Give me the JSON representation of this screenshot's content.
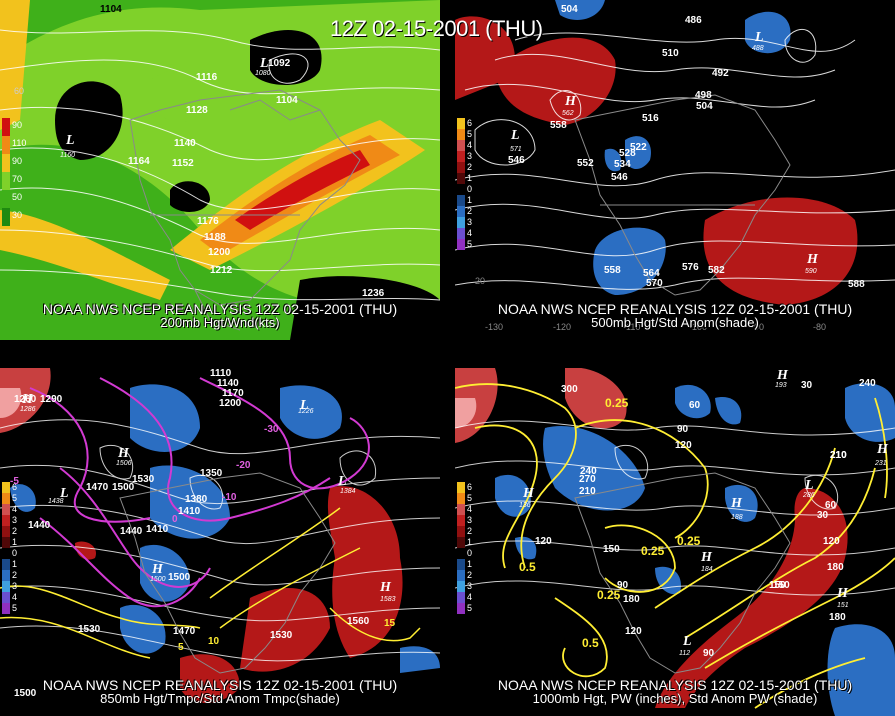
{
  "title": "12Z 02-15-2001 (THU)",
  "colors": {
    "wind_light": "#7fd12a",
    "wind_mid": "#3fb01a",
    "wind_yellow": "#f2c21d",
    "wind_orange": "#f08a16",
    "wind_red": "#d01010",
    "anom_pos": "#b41818",
    "anom_neg": "#2b6ec2",
    "contour": "#ffffff",
    "temp_contour": "#d23ad2",
    "pw_contour": "#ffee33",
    "map_outline": "#8a8a8a"
  },
  "panels": [
    {
      "caption": "NOAA NWS NCEP REANALYSIS 12Z 02-15-2001 (THU)",
      "subtitle": "200mb Hgt/Wnd(kts)",
      "scale_labels": [
        "90",
        "110",
        "90",
        "70",
        "50",
        "30"
      ],
      "contour_labels": [
        "1104",
        "1092",
        "1116",
        "1104",
        "1128",
        "1140",
        "1164",
        "1152",
        "1176",
        "1188",
        "1200",
        "1212",
        "1236"
      ],
      "low_center_values": [
        "1160",
        "1080"
      ],
      "lon_tick": "60"
    },
    {
      "caption": "NOAA NWS NCEP REANALYSIS 12Z 02-15-2001 (THU)",
      "subtitle": "500mb Hgt/Std Anom(shade)",
      "scale_labels": [
        "6",
        "5",
        "4",
        "3",
        "2",
        "1",
        "0",
        "1",
        "2",
        "3",
        "4",
        "5"
      ],
      "contour_labels": [
        "504",
        "486",
        "510",
        "492",
        "498",
        "504",
        "516",
        "522",
        "528",
        "534",
        "546",
        "552",
        "558",
        "546",
        "558",
        "564",
        "570",
        "576",
        "582",
        "588"
      ],
      "center_values": [
        "562",
        "571",
        "488",
        "590"
      ],
      "lon_ticks": [
        "-130",
        "-120",
        "-110",
        "-100",
        "-90",
        "-80",
        "20"
      ]
    },
    {
      "caption": "NOAA NWS NCEP REANALYSIS 12Z 02-15-2001 (THU)",
      "subtitle": "850mb Hgt/Tmpc/Std Anom Tmpc(shade)",
      "scale_labels": [
        "6",
        "5",
        "4",
        "3",
        "2",
        "1",
        "0",
        "1",
        "2",
        "3",
        "4",
        "5"
      ],
      "contour_labels": [
        "1260",
        "1290",
        "1110",
        "1140",
        "1170",
        "1200",
        "1350",
        "1470",
        "1500",
        "1530",
        "1440",
        "1380",
        "1410",
        "1440",
        "1410",
        "1500",
        "1470",
        "1530",
        "1560",
        "1530",
        "1500"
      ],
      "temp_labels": [
        "-30",
        "-20",
        "-10",
        "0",
        "10",
        "-5",
        "5",
        "15"
      ],
      "center_values": [
        "1286",
        "1226",
        "1438",
        "1506",
        "1384",
        "1500",
        "1583"
      ],
      "lon_tick": "20"
    },
    {
      "caption": "NOAA NWS NCEP REANALYSIS 12Z 02-15-2001 (THU)",
      "subtitle": "1000mb Hgt, PW (inches), Std Anom PW (shade)",
      "scale_labels": [
        "6",
        "5",
        "4",
        "3",
        "2",
        "1",
        "0",
        "1",
        "2",
        "3",
        "4",
        "5"
      ],
      "contour_labels": [
        "300",
        "60",
        "30",
        "240",
        "90",
        "120",
        "210",
        "240",
        "270",
        "210",
        "120",
        "150",
        "180",
        "120",
        "90",
        "150",
        "180",
        "60",
        "30",
        "120",
        "180",
        "150",
        "210",
        "90"
      ],
      "pw_labels": [
        "0.25",
        "0.5",
        "0.25",
        "0.25",
        "0.5",
        "0.25"
      ],
      "center_values": [
        "136",
        "188",
        "184",
        "231",
        "286",
        "151",
        "193",
        "112"
      ]
    }
  ]
}
